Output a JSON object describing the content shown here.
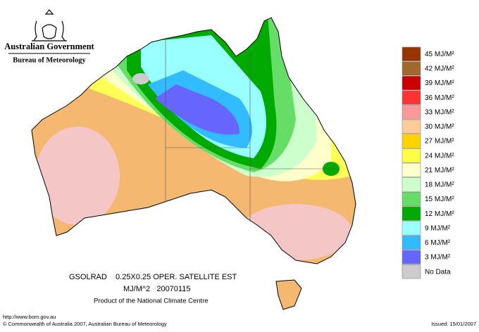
{
  "logo": {
    "line1": "Australian Government",
    "line2": "Bureau of Meteorology"
  },
  "legend": [
    {
      "label": "45 MJ/M²",
      "color": "#993300"
    },
    {
      "label": "42 MJ/M²",
      "color": "#a0672e"
    },
    {
      "label": "39 MJ/M²",
      "color": "#cc0000"
    },
    {
      "label": "36 MJ/M²",
      "color": "#ff3333"
    },
    {
      "label": "33 MJ/M²",
      "color": "#ff9999"
    },
    {
      "label": "30 MJ/M²",
      "color": "#ffcc99"
    },
    {
      "label": "27 MJ/M²",
      "color": "#ffd200"
    },
    {
      "label": "24 MJ/M²",
      "color": "#ffff44"
    },
    {
      "label": "21 MJ/M²",
      "color": "#ffffcc"
    },
    {
      "label": "18 MJ/M²",
      "color": "#ccffcc"
    },
    {
      "label": "15 MJ/M²",
      "color": "#66dd66"
    },
    {
      "label": "12 MJ/M²",
      "color": "#00aa00"
    },
    {
      "label": "9 MJ/M²",
      "color": "#99ffff"
    },
    {
      "label": "6 MJ/M²",
      "color": "#33bbff"
    },
    {
      "label": "3 MJ/M²",
      "color": "#6666ff"
    },
    {
      "label": "No Data",
      "color": "#cccccc"
    }
  ],
  "caption": {
    "line1": "GSOLRAD    0.25X0.25 OPER. SATELLITE EST",
    "line2": "MJ/M^2   20070115",
    "line3": "Product of the National Climate Centre"
  },
  "footer": {
    "url": "http://www.bom.gov.au",
    "copyright": "© Commonwealth of Australia 2007, Australian Bureau of Meteorology",
    "issued": "Issued: 15/01/2007"
  }
}
